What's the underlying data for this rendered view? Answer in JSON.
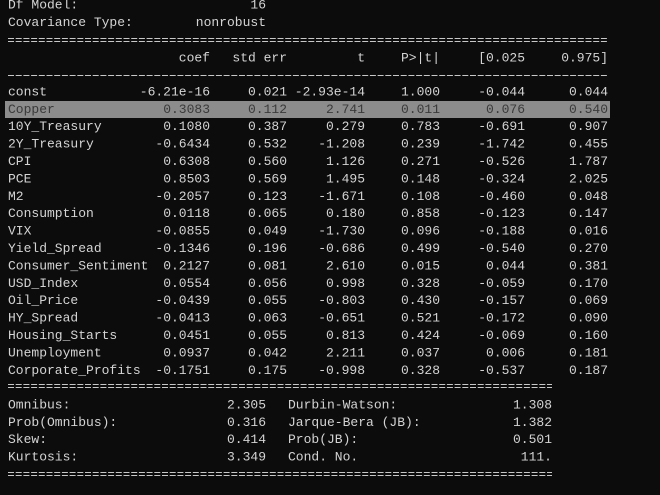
{
  "header": {
    "rows": [
      [
        "Df Model:",
        "16"
      ],
      [
        "Covariance Type:",
        "nonrobust"
      ]
    ]
  },
  "table": {
    "columns": [
      "coef",
      "std err",
      "t",
      "P>|t|",
      "[0.025",
      "0.975]"
    ],
    "rows": [
      [
        "const",
        "-6.21e-16",
        "0.021",
        "-2.93e-14",
        "1.000",
        "-0.044",
        "0.044"
      ],
      [
        "Copper",
        "0.3083",
        "0.112",
        "2.741",
        "0.011",
        "0.076",
        "0.540"
      ],
      [
        "10Y_Treasury",
        "0.1080",
        "0.387",
        "0.279",
        "0.783",
        "-0.691",
        "0.907"
      ],
      [
        "2Y_Treasury",
        "-0.6434",
        "0.532",
        "-1.208",
        "0.239",
        "-1.742",
        "0.455"
      ],
      [
        "CPI",
        "0.6308",
        "0.560",
        "1.126",
        "0.271",
        "-0.526",
        "1.787"
      ],
      [
        "PCE",
        "0.8503",
        "0.569",
        "1.495",
        "0.148",
        "-0.324",
        "2.025"
      ],
      [
        "M2",
        "-0.2057",
        "0.123",
        "-1.671",
        "0.108",
        "-0.460",
        "0.048"
      ],
      [
        "Consumption",
        "0.0118",
        "0.065",
        "0.180",
        "0.858",
        "-0.123",
        "0.147"
      ],
      [
        "VIX",
        "-0.0855",
        "0.049",
        "-1.730",
        "0.096",
        "-0.188",
        "0.016"
      ],
      [
        "Yield_Spread",
        "-0.1346",
        "0.196",
        "-0.686",
        "0.499",
        "-0.540",
        "0.270"
      ],
      [
        "Consumer_Sentiment",
        "0.2127",
        "0.081",
        "2.610",
        "0.015",
        "0.044",
        "0.381"
      ],
      [
        "USD_Index",
        "0.0554",
        "0.056",
        "0.998",
        "0.328",
        "-0.059",
        "0.170"
      ],
      [
        "Oil_Price",
        "-0.0439",
        "0.055",
        "-0.803",
        "0.430",
        "-0.157",
        "0.069"
      ],
      [
        "HY_Spread",
        "-0.0413",
        "0.063",
        "-0.651",
        "0.521",
        "-0.172",
        "0.090"
      ],
      [
        "Housing_Starts",
        "0.0451",
        "0.055",
        "0.813",
        "0.424",
        "-0.069",
        "0.160"
      ],
      [
        "Unemployment",
        "0.0937",
        "0.042",
        "2.211",
        "0.037",
        "0.006",
        "0.181"
      ],
      [
        "Corporate_Profits",
        "-0.1751",
        "0.175",
        "-0.998",
        "0.328",
        "-0.537",
        "0.187"
      ]
    ]
  },
  "diagnostics": {
    "rows": [
      [
        "Omnibus:",
        "2.305",
        "Durbin-Watson:",
        "1.308"
      ],
      [
        "Prob(Omnibus):",
        "0.316",
        "Jarque-Bera (JB):",
        "1.382"
      ],
      [
        "Skew:",
        "0.414",
        "Prob(JB):",
        "0.501"
      ],
      [
        "Kurtosis:",
        "3.349",
        "Cond. No.",
        "111."
      ]
    ]
  }
}
